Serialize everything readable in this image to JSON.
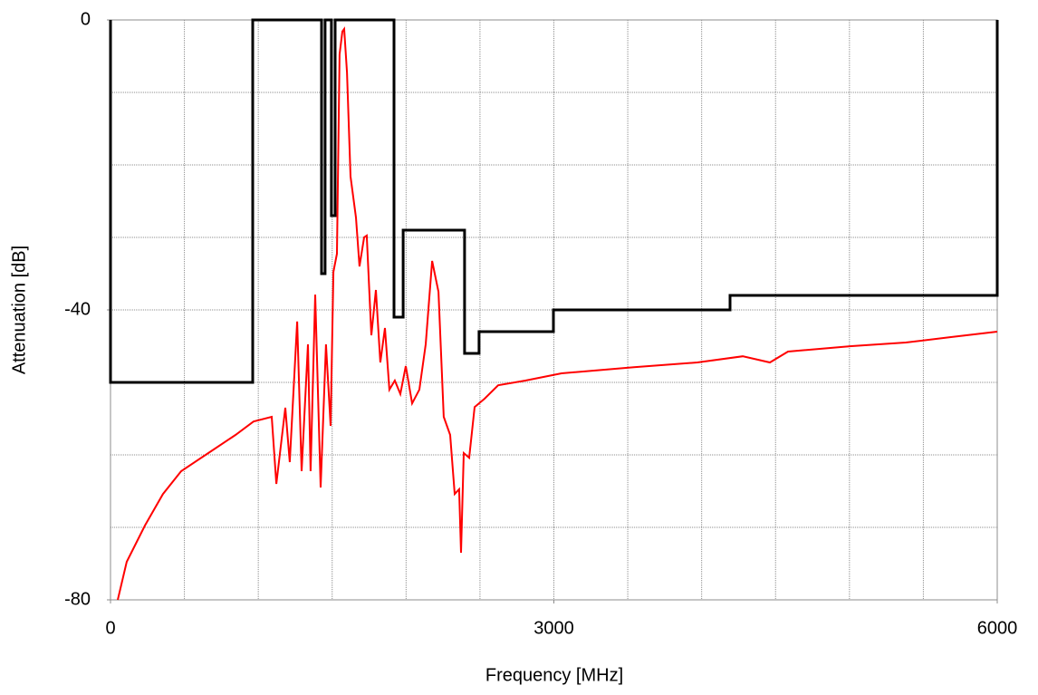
{
  "chart_data": {
    "type": "line",
    "xlabel": "Frequency [MHz]",
    "ylabel": "Attenuation [dB]",
    "xlim": [
      0,
      6000
    ],
    "ylim": [
      -80,
      0
    ],
    "xticks": [
      0,
      3000,
      6000
    ],
    "yticks": [
      0,
      -40,
      -80
    ],
    "xgrid": [
      500,
      1000,
      1500,
      2000,
      2500,
      3000,
      3500,
      4000,
      4500,
      5000,
      5500
    ],
    "ygrid": [
      -10,
      -20,
      -30,
      -40,
      -50,
      -60,
      -70
    ],
    "grid": true,
    "series": [
      {
        "color": "#ff0000",
        "x": [
          49,
          110,
          233,
          355,
          478,
          662,
          846,
          968,
          1091,
          1122,
          1183,
          1213,
          1263,
          1293,
          1336,
          1354,
          1385,
          1422,
          1458,
          1489,
          1508,
          1532,
          1550,
          1569,
          1581,
          1600,
          1624,
          1661,
          1685,
          1716,
          1734,
          1765,
          1796,
          1826,
          1857,
          1887,
          1924,
          1961,
          1998,
          2041,
          2090,
          2133,
          2176,
          2219,
          2255,
          2298,
          2329,
          2359,
          2372,
          2390,
          2427,
          2464,
          2531,
          2623,
          2807,
          3052,
          3542,
          3971,
          4278,
          4462,
          4584,
          5013,
          5381,
          5687,
          6000
        ],
        "values": [
          -80,
          -74.75,
          -69.75,
          -65.4,
          -62.25,
          -59.75,
          -57.25,
          -55.4,
          -54.75,
          -64,
          -53.5,
          -61,
          -41.6,
          -62.25,
          -44.75,
          -62.25,
          -37.9,
          -64.5,
          -44.75,
          -56,
          -34.75,
          -32.25,
          -4.75,
          -1.6,
          -1.25,
          -7.25,
          -21.6,
          -27.25,
          -34,
          -30,
          -29.75,
          -43.5,
          -37.25,
          -47.25,
          -42.5,
          -51,
          -49.75,
          -51.6,
          -47.75,
          -52.9,
          -51,
          -44.75,
          -33.25,
          -37.5,
          -54.75,
          -57.25,
          -65.4,
          -64.75,
          -73.5,
          -59.75,
          -60.4,
          -53.4,
          -52.25,
          -50.4,
          -49.75,
          -48.75,
          -47.9,
          -47.25,
          -46.4,
          -47.25,
          -45.75,
          -45,
          -44.5,
          -43.75,
          -43
        ]
      },
      {
        "color": "#000000",
        "x": [
          0,
          0,
          962,
          962,
          1428,
          1428,
          1452,
          1452,
          1495,
          1495,
          1520,
          1520,
          1918,
          1918,
          1980,
          1980,
          2396,
          2396,
          2494,
          2494,
          2997,
          2997,
          4192,
          4192,
          6000,
          6000
        ],
        "values": [
          0,
          -50,
          -50,
          0,
          0,
          -35,
          -35,
          0,
          0,
          -27,
          -27,
          0,
          0,
          -41,
          -41,
          -29,
          -29,
          -46,
          -46,
          -43,
          -43,
          -40,
          -40,
          -38,
          -38,
          0
        ]
      }
    ]
  }
}
